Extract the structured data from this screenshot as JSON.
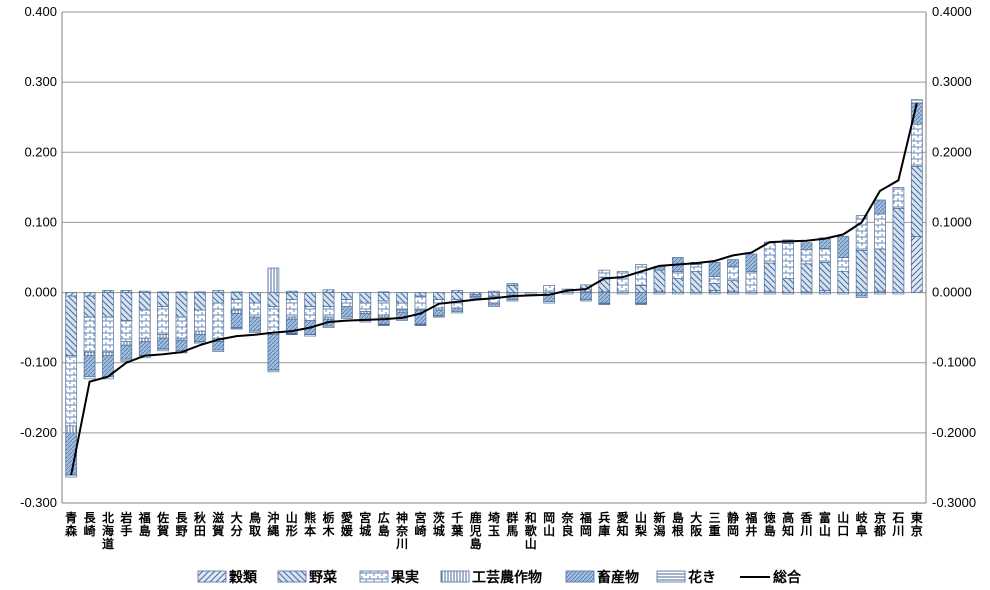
{
  "chart_data": {
    "type": "bar",
    "stacked": true,
    "categories": [
      "青森",
      "長崎",
      "北海道",
      "岩手",
      "福島",
      "佐賀",
      "長野",
      "秋田",
      "滋賀",
      "大分",
      "鳥取",
      "沖縄",
      "山形",
      "熊本",
      "栃木",
      "愛媛",
      "宮城",
      "広島",
      "神奈川",
      "宮崎",
      "茨城",
      "千葉",
      "鹿児島",
      "埼玉",
      "群馬",
      "和歌山",
      "岡山",
      "奈良",
      "福岡",
      "兵庫",
      "愛知",
      "山梨",
      "新潟",
      "島根",
      "大阪",
      "三重",
      "静岡",
      "福井",
      "徳島",
      "高知",
      "香川",
      "富山",
      "山口",
      "岐阜",
      "京都",
      "石川",
      "東京"
    ],
    "series": [
      {
        "name": "穀類",
        "values": [
          -0.005,
          -0.005,
          0.003,
          0.003,
          0.002,
          0.001,
          0.001,
          0.001,
          0.003,
          0.001,
          0.0,
          0.0,
          0.002,
          0.0,
          0.004,
          0.0,
          0.0,
          0.001,
          0.0,
          0.0,
          0.0,
          0.003,
          0.0,
          0.002,
          0.0,
          0.0,
          0.0,
          0.0,
          0.001,
          0.002,
          0.0,
          0.0,
          0.002,
          0.0,
          0.0,
          0.003,
          0.002,
          0.0,
          0.002,
          0.0,
          0.001,
          0.003,
          0.0,
          0.0,
          0.002,
          0.0,
          0.08
        ]
      },
      {
        "name": "野菜",
        "values": [
          -0.085,
          -0.03,
          -0.035,
          -0.04,
          -0.025,
          -0.02,
          -0.035,
          -0.025,
          -0.015,
          -0.01,
          -0.015,
          -0.02,
          -0.01,
          -0.02,
          -0.02,
          -0.01,
          -0.015,
          -0.012,
          -0.015,
          -0.005,
          -0.01,
          -0.01,
          -0.003,
          -0.005,
          0.01,
          0.0,
          -0.003,
          0.005,
          0.01,
          0.02,
          0.0,
          0.01,
          0.03,
          0.02,
          0.03,
          0.01,
          0.015,
          0.0,
          0.04,
          0.02,
          0.04,
          0.04,
          0.03,
          0.06,
          0.06,
          0.12,
          0.1
        ]
      },
      {
        "name": "果実",
        "values": [
          -0.1,
          -0.05,
          -0.05,
          -0.03,
          -0.04,
          -0.04,
          -0.03,
          -0.03,
          -0.05,
          -0.015,
          -0.02,
          -0.04,
          -0.025,
          -0.02,
          -0.015,
          -0.01,
          -0.012,
          -0.02,
          -0.01,
          -0.02,
          -0.012,
          -0.012,
          0.0,
          -0.01,
          0.003,
          0.0,
          0.01,
          0.0,
          0.0,
          0.01,
          0.03,
          0.03,
          0.0,
          0.01,
          0.01,
          0.01,
          0.02,
          0.03,
          0.03,
          0.05,
          0.02,
          0.02,
          0.02,
          0.05,
          0.05,
          0.03,
          0.06
        ]
      },
      {
        "name": "工芸農作物",
        "values": [
          -0.01,
          -0.005,
          -0.005,
          -0.005,
          -0.005,
          -0.005,
          -0.003,
          -0.005,
          -0.005,
          -0.005,
          0.0,
          0.035,
          -0.003,
          0.0,
          -0.003,
          0.0,
          -0.003,
          -0.003,
          -0.003,
          0.0,
          -0.003,
          0.0,
          0.0,
          0.0,
          0.0,
          0.0,
          0.0,
          0.0,
          0.0,
          0.0,
          0.0,
          0.0,
          0.0,
          0.0,
          0.0,
          0.0,
          0.0,
          0.0,
          0.0,
          0.0,
          0.0,
          0.0,
          0.0,
          0.0,
          0.0,
          0.0,
          0.0
        ]
      },
      {
        "name": "畜産物",
        "values": [
          -0.06,
          -0.03,
          -0.03,
          -0.02,
          -0.02,
          -0.015,
          -0.015,
          -0.01,
          -0.012,
          -0.02,
          -0.02,
          -0.05,
          -0.02,
          -0.02,
          -0.01,
          -0.015,
          -0.01,
          -0.01,
          -0.01,
          -0.02,
          -0.008,
          -0.005,
          -0.003,
          -0.003,
          -0.01,
          0.0,
          -0.01,
          0.0,
          -0.01,
          -0.015,
          0.0,
          -0.015,
          0.005,
          0.02,
          0.003,
          0.02,
          0.01,
          0.025,
          0.0,
          0.005,
          0.01,
          0.015,
          0.03,
          -0.005,
          0.02,
          0.0,
          0.03
        ]
      },
      {
        "name": "花き",
        "values": [
          -0.003,
          -0.003,
          -0.003,
          -0.003,
          -0.003,
          -0.003,
          -0.003,
          -0.002,
          -0.002,
          -0.002,
          -0.002,
          -0.003,
          -0.002,
          -0.002,
          -0.002,
          -0.002,
          -0.002,
          -0.002,
          -0.002,
          -0.002,
          -0.002,
          -0.002,
          -0.002,
          -0.002,
          -0.002,
          -0.002,
          -0.002,
          -0.002,
          -0.002,
          -0.002,
          -0.002,
          -0.002,
          -0.002,
          -0.002,
          -0.002,
          -0.002,
          -0.002,
          -0.002,
          -0.002,
          -0.002,
          -0.002,
          -0.002,
          -0.002,
          -0.002,
          -0.002,
          -0.002,
          0.005
        ]
      },
      {
        "name": "総合",
        "type": "line",
        "values": [
          -0.26,
          -0.127,
          -0.12,
          -0.1,
          -0.09,
          -0.088,
          -0.085,
          -0.075,
          -0.067,
          -0.062,
          -0.06,
          -0.057,
          -0.055,
          -0.05,
          -0.042,
          -0.04,
          -0.039,
          -0.038,
          -0.036,
          -0.03,
          -0.016,
          -0.013,
          -0.01,
          -0.008,
          -0.005,
          -0.004,
          -0.003,
          0.003,
          0.005,
          0.02,
          0.022,
          0.03,
          0.038,
          0.04,
          0.042,
          0.045,
          0.053,
          0.057,
          0.072,
          0.073,
          0.074,
          0.077,
          0.083,
          0.1,
          0.145,
          0.16,
          0.27
        ]
      }
    ],
    "ylim": [
      -0.3,
      0.4
    ],
    "yticks_left": [
      "-0.300",
      "-0.200",
      "-0.100",
      "0.000",
      "0.100",
      "0.200",
      "0.300",
      "0.400"
    ],
    "yticks_right": [
      "-0.3000",
      "-0.2000",
      "-0.1000",
      "0.0000",
      "0.1000",
      "0.2000",
      "0.3000",
      "0.4000"
    ],
    "grid": true,
    "legend_position": "bottom",
    "colors": {
      "fill": "#b9d3ee",
      "stroke": "#4f6f9a",
      "line": "#000000",
      "grid": "#9a9a9a"
    }
  }
}
